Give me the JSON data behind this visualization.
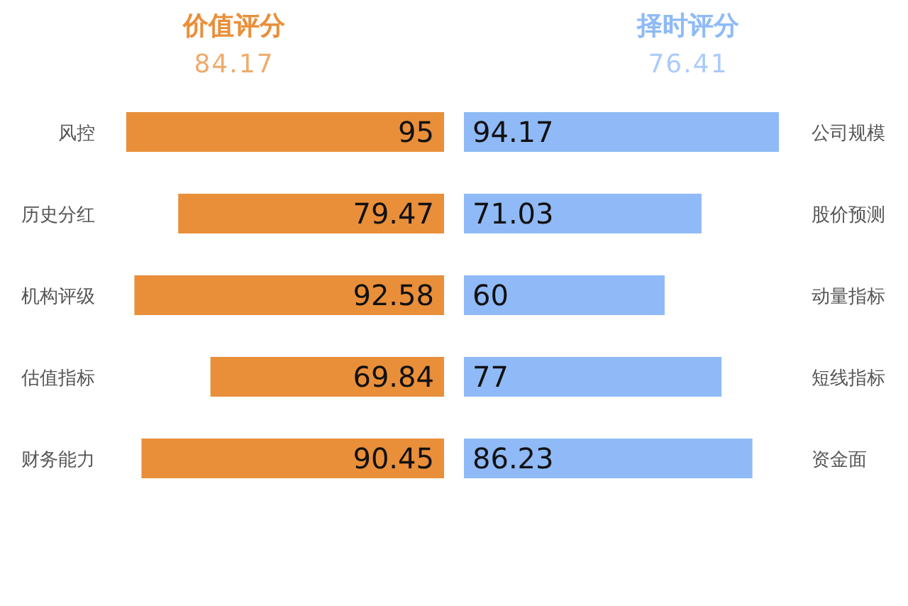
{
  "chart_data": [
    {
      "type": "bar",
      "orientation": "horizontal",
      "title": "价值评分",
      "subtitle": "84.17",
      "categories": [
        "风控",
        "历史分红",
        "机构评级",
        "估值指标",
        "财务能力"
      ],
      "values": [
        95,
        79.47,
        92.58,
        69.84,
        90.45
      ],
      "color": "#e98f3a",
      "data_labels": true,
      "tick_labels": "y"
    },
    {
      "type": "bar",
      "orientation": "horizontal",
      "title": "择时评分",
      "subtitle": "76.41",
      "categories": [
        "公司规模",
        "股价预测",
        "动量指标",
        "短线指标",
        "资金面"
      ],
      "values": [
        94.17,
        71.03,
        60,
        77,
        86.23
      ],
      "color": "#8fbaf7",
      "data_labels": true,
      "tick_labels": "y"
    }
  ]
}
